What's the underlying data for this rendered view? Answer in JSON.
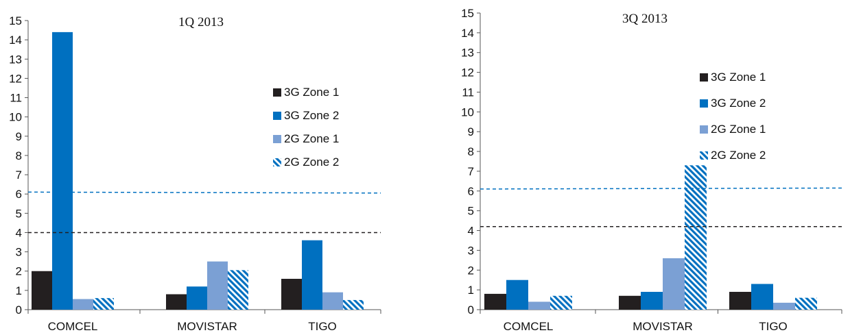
{
  "chart_data": [
    {
      "type": "bar",
      "title": "1Q 2013",
      "categories": [
        "COMCEL",
        "MOVISTAR",
        "TIGO"
      ],
      "ylim": [
        0,
        15
      ],
      "yticks": [
        0,
        1,
        2,
        3,
        4,
        5,
        6,
        7,
        8,
        9,
        10,
        11,
        12,
        13,
        14,
        15
      ],
      "series": [
        {
          "name": "3G Zone 1",
          "values": [
            2.0,
            0.8,
            1.6
          ],
          "color": "#231f20",
          "pattern": "solid"
        },
        {
          "name": "3G Zone 2",
          "values": [
            14.4,
            1.2,
            3.6
          ],
          "color": "#0070c0",
          "pattern": "solid"
        },
        {
          "name": "2G Zone 1",
          "values": [
            0.55,
            2.5,
            0.9
          ],
          "color": "#7ba0d4",
          "pattern": "solid"
        },
        {
          "name": "2G Zone 2",
          "values": [
            0.6,
            2.05,
            0.5
          ],
          "color": "#0070c0",
          "pattern": "hatched"
        }
      ],
      "reference_lines": [
        {
          "y": 6.1,
          "y_end": 6.05,
          "color": "#0070c0",
          "style": "dashed"
        },
        {
          "y": 4.0,
          "y_end": 4.0,
          "color": "#231f20",
          "style": "dashed"
        }
      ],
      "legend_position": "right"
    },
    {
      "type": "bar",
      "title": "3Q 2013",
      "categories": [
        "COMCEL",
        "MOVISTAR",
        "TIGO"
      ],
      "ylim": [
        0,
        15
      ],
      "yticks": [
        0,
        1,
        2,
        3,
        4,
        5,
        6,
        7,
        8,
        9,
        10,
        11,
        12,
        13,
        14,
        15
      ],
      "series": [
        {
          "name": "3G Zone 1",
          "values": [
            0.8,
            0.7,
            0.9
          ],
          "color": "#231f20",
          "pattern": "solid"
        },
        {
          "name": "3G Zone 2",
          "values": [
            1.5,
            0.9,
            1.3
          ],
          "color": "#0070c0",
          "pattern": "solid"
        },
        {
          "name": "2G Zone 1",
          "values": [
            0.4,
            2.6,
            0.35
          ],
          "color": "#7ba0d4",
          "pattern": "solid"
        },
        {
          "name": "2G Zone 2",
          "values": [
            0.7,
            7.3,
            0.6
          ],
          "color": "#0070c0",
          "pattern": "hatched"
        }
      ],
      "reference_lines": [
        {
          "y": 6.1,
          "y_end": 6.15,
          "color": "#0070c0",
          "style": "dashed"
        },
        {
          "y": 4.2,
          "y_end": 4.2,
          "color": "#231f20",
          "style": "dashed"
        }
      ],
      "legend_position": "right"
    }
  ]
}
